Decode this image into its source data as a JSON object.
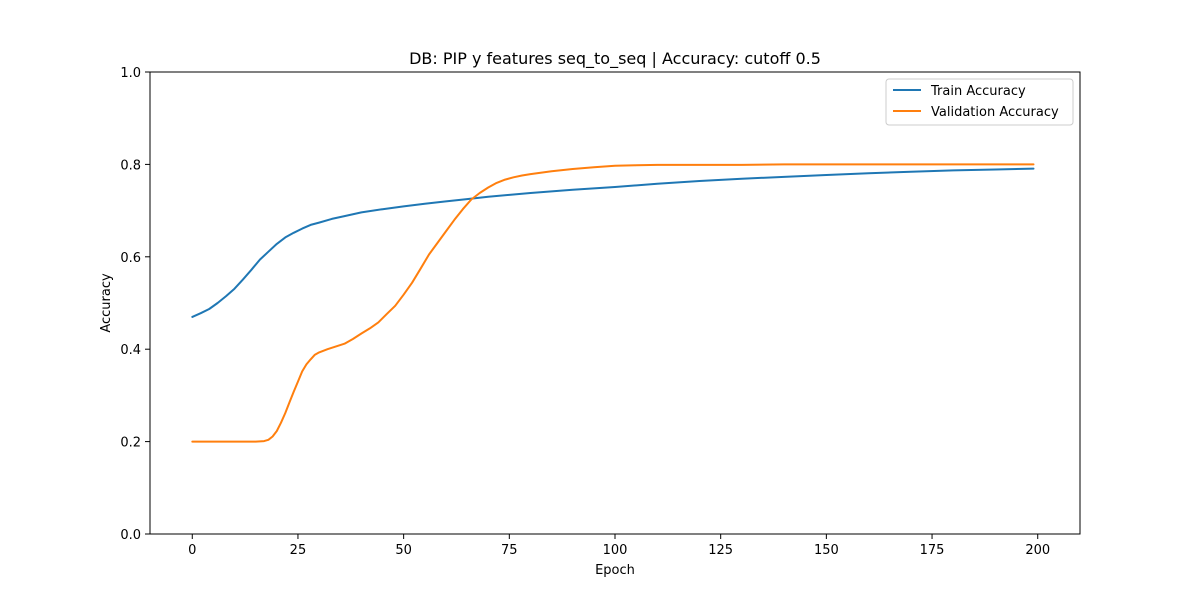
{
  "chart_data": {
    "type": "line",
    "title": "DB: PIP y features seq_to_seq | Accuracy: cutoff 0.5",
    "xlabel": "Epoch",
    "ylabel": "Accuracy",
    "xlim": [
      -10,
      210
    ],
    "ylim": [
      0.0,
      1.0
    ],
    "xticks": [
      0,
      25,
      50,
      75,
      100,
      125,
      150,
      175,
      200
    ],
    "yticks": [
      0.0,
      0.2,
      0.4,
      0.6,
      0.8,
      1.0
    ],
    "xtick_labels": [
      "0",
      "25",
      "50",
      "75",
      "100",
      "125",
      "150",
      "175",
      "200"
    ],
    "ytick_labels": [
      "0.0",
      "0.2",
      "0.4",
      "0.6",
      "0.8",
      "1.0"
    ],
    "grid": false,
    "legend_position": "top-right",
    "series": [
      {
        "name": "Train Accuracy",
        "color": "#1f77b4",
        "points": [
          [
            0,
            0.47
          ],
          [
            2,
            0.478
          ],
          [
            4,
            0.487
          ],
          [
            6,
            0.5
          ],
          [
            8,
            0.515
          ],
          [
            10,
            0.531
          ],
          [
            12,
            0.551
          ],
          [
            14,
            0.572
          ],
          [
            16,
            0.594
          ],
          [
            18,
            0.611
          ],
          [
            20,
            0.628
          ],
          [
            22,
            0.642
          ],
          [
            24,
            0.652
          ],
          [
            26,
            0.661
          ],
          [
            28,
            0.669
          ],
          [
            30,
            0.674
          ],
          [
            33,
            0.682
          ],
          [
            36,
            0.688
          ],
          [
            40,
            0.696
          ],
          [
            45,
            0.703
          ],
          [
            50,
            0.709
          ],
          [
            55,
            0.715
          ],
          [
            60,
            0.72
          ],
          [
            65,
            0.725
          ],
          [
            70,
            0.73
          ],
          [
            75,
            0.734
          ],
          [
            80,
            0.738
          ],
          [
            90,
            0.745
          ],
          [
            100,
            0.751
          ],
          [
            110,
            0.758
          ],
          [
            120,
            0.764
          ],
          [
            130,
            0.769
          ],
          [
            140,
            0.773
          ],
          [
            150,
            0.777
          ],
          [
            160,
            0.781
          ],
          [
            170,
            0.784
          ],
          [
            180,
            0.787
          ],
          [
            190,
            0.789
          ],
          [
            199,
            0.791
          ]
        ]
      },
      {
        "name": "Validation Accuracy",
        "color": "#ff7f0e",
        "points": [
          [
            0,
            0.2
          ],
          [
            5,
            0.2
          ],
          [
            10,
            0.2
          ],
          [
            15,
            0.2
          ],
          [
            17,
            0.201
          ],
          [
            18,
            0.204
          ],
          [
            19,
            0.211
          ],
          [
            20,
            0.223
          ],
          [
            21,
            0.241
          ],
          [
            22,
            0.262
          ],
          [
            23,
            0.285
          ],
          [
            24,
            0.308
          ],
          [
            25,
            0.33
          ],
          [
            26,
            0.352
          ],
          [
            27,
            0.367
          ],
          [
            28,
            0.378
          ],
          [
            29,
            0.388
          ],
          [
            30,
            0.393
          ],
          [
            32,
            0.4
          ],
          [
            34,
            0.406
          ],
          [
            36,
            0.412
          ],
          [
            38,
            0.422
          ],
          [
            40,
            0.434
          ],
          [
            42,
            0.445
          ],
          [
            44,
            0.458
          ],
          [
            46,
            0.476
          ],
          [
            48,
            0.494
          ],
          [
            50,
            0.518
          ],
          [
            52,
            0.544
          ],
          [
            54,
            0.574
          ],
          [
            56,
            0.605
          ],
          [
            58,
            0.63
          ],
          [
            60,
            0.655
          ],
          [
            62,
            0.68
          ],
          [
            64,
            0.703
          ],
          [
            66,
            0.724
          ],
          [
            68,
            0.738
          ],
          [
            70,
            0.75
          ],
          [
            72,
            0.76
          ],
          [
            74,
            0.767
          ],
          [
            76,
            0.772
          ],
          [
            78,
            0.776
          ],
          [
            80,
            0.779
          ],
          [
            85,
            0.785
          ],
          [
            90,
            0.79
          ],
          [
            95,
            0.794
          ],
          [
            100,
            0.797
          ],
          [
            105,
            0.798
          ],
          [
            110,
            0.799
          ],
          [
            120,
            0.799
          ],
          [
            130,
            0.799
          ],
          [
            140,
            0.8
          ],
          [
            150,
            0.8
          ],
          [
            160,
            0.8
          ],
          [
            170,
            0.8
          ],
          [
            180,
            0.8
          ],
          [
            190,
            0.8
          ],
          [
            199,
            0.8
          ]
        ]
      }
    ]
  }
}
